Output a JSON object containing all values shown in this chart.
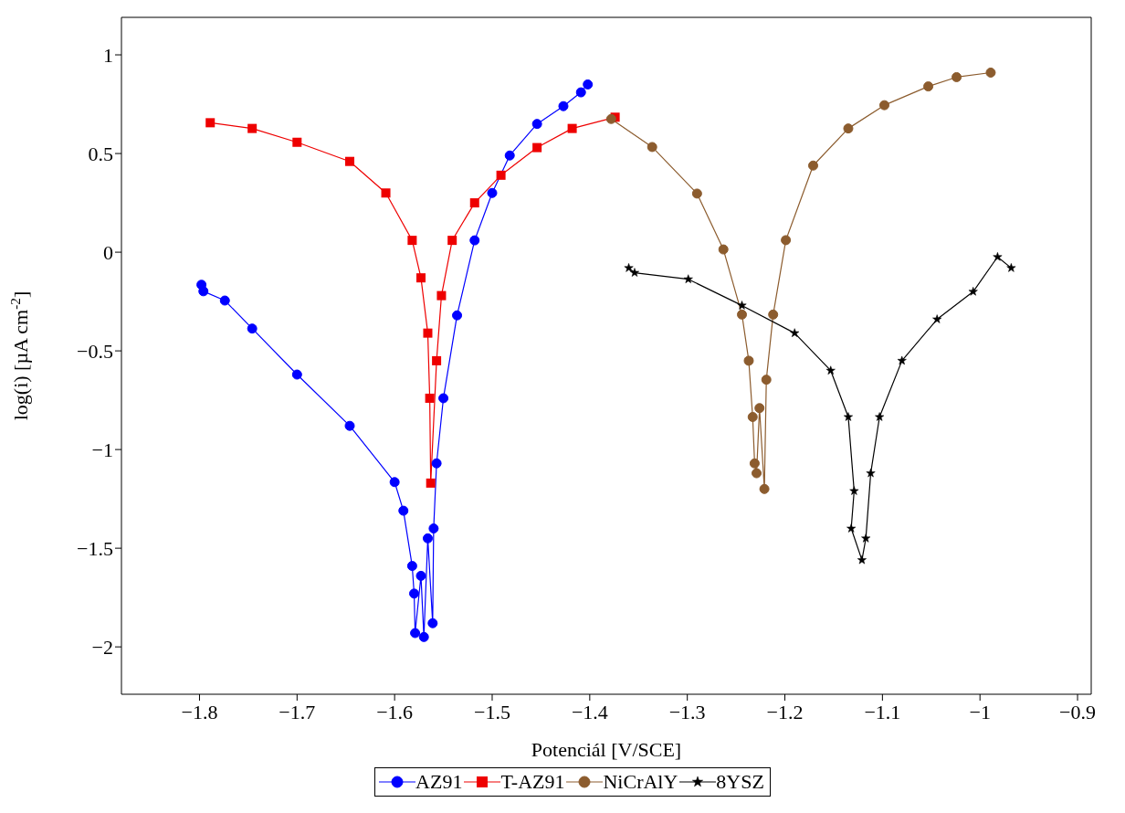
{
  "chart_data": {
    "type": "line",
    "xlabel": "Potenciál [V/SCE]",
    "ylabel": "log(i) [µA cm$^{-2}$]",
    "xlim": [
      -1.88,
      -0.886
    ],
    "xticks": [
      -1.8,
      -1.7,
      -1.6,
      -1.5,
      -1.4,
      -1.3,
      -1.2,
      -1.1,
      -1,
      -0.9
    ],
    "ylim": [
      -2.24,
      1.19
    ],
    "yticks": [
      -2,
      -1.5,
      -1,
      -0.5,
      0,
      0.5,
      1
    ],
    "grid": false,
    "legend": "bottom",
    "line_style": "solid",
    "series": [
      {
        "name": "AZ91",
        "color": "#0000ff",
        "marker": "circle",
        "x": [
          -1.798,
          -1.796,
          -1.774,
          -1.746,
          -1.7,
          -1.646,
          -1.6,
          -1.591,
          -1.582,
          -1.58,
          -1.579,
          -1.573,
          -1.57,
          -1.566,
          -1.561,
          -1.56,
          -1.557,
          -1.55,
          -1.536,
          -1.518,
          -1.5,
          -1.482,
          -1.454,
          -1.427,
          -1.409,
          -1.402
        ],
        "values": [
          -0.165,
          -0.198,
          -0.245,
          -0.387,
          -0.62,
          -0.88,
          -1.165,
          -1.31,
          -1.59,
          -1.73,
          -1.93,
          -1.64,
          -1.95,
          -1.45,
          -1.88,
          -1.4,
          -1.07,
          -0.74,
          -0.32,
          0.06,
          0.3,
          0.49,
          0.65,
          0.74,
          0.81,
          0.85
        ]
      },
      {
        "name": "T-AZ91",
        "color": "#ee0000",
        "marker": "square",
        "x": [
          -1.789,
          -1.746,
          -1.7,
          -1.646,
          -1.609,
          -1.582,
          -1.573,
          -1.566,
          -1.564,
          -1.563,
          -1.557,
          -1.552,
          -1.541,
          -1.518,
          -1.491,
          -1.454,
          -1.418,
          -1.374
        ],
        "values": [
          0.656,
          0.627,
          0.557,
          0.46,
          0.3,
          0.06,
          -0.13,
          -0.41,
          -0.74,
          -1.17,
          -0.55,
          -0.22,
          0.06,
          0.25,
          0.39,
          0.53,
          0.627,
          0.684
        ]
      },
      {
        "name": "NiCrAlY",
        "color": "#8c5c2e",
        "marker": "circle",
        "x": [
          -1.378,
          -1.336,
          -1.29,
          -1.263,
          -1.244,
          -1.237,
          -1.233,
          -1.231,
          -1.229,
          -1.226,
          -1.221,
          -1.219,
          -1.212,
          -1.199,
          -1.171,
          -1.135,
          -1.098,
          -1.053,
          -1.024,
          -0.989
        ],
        "values": [
          0.675,
          0.533,
          0.297,
          0.014,
          -0.316,
          -0.55,
          -0.835,
          -1.07,
          -1.12,
          -0.79,
          -1.2,
          -0.646,
          -0.316,
          0.061,
          0.439,
          0.627,
          0.745,
          0.84,
          0.887,
          0.91
        ]
      },
      {
        "name": "8YSZ",
        "color": "#000000",
        "marker": "star",
        "x": [
          -1.36,
          -1.354,
          -1.299,
          -1.244,
          -1.19,
          -1.153,
          -1.135,
          -1.129,
          -1.132,
          -1.121,
          -1.117,
          -1.112,
          -1.103,
          -1.08,
          -1.044,
          -1.007,
          -0.982,
          -0.968
        ],
        "values": [
          -0.08,
          -0.104,
          -0.137,
          -0.27,
          -0.41,
          -0.6,
          -0.835,
          -1.21,
          -1.4,
          -1.56,
          -1.45,
          -1.12,
          -0.835,
          -0.55,
          -0.34,
          -0.2,
          -0.024,
          -0.08
        ]
      }
    ]
  }
}
